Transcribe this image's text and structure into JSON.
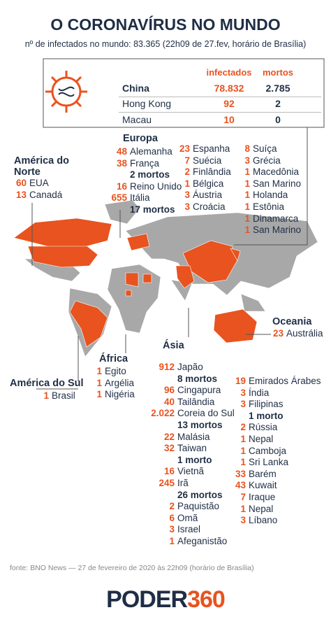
{
  "title": "O CORONAVÍRUS NO MUNDO",
  "subtitle": "nº de infectados no mundo: 83.365 (22h09 de 27.fev, horário de Brasília)",
  "table": {
    "headers": [
      "infectados",
      "mortos"
    ],
    "rows": [
      [
        "China",
        "78.832",
        "2.785"
      ],
      [
        "Hong Kong",
        "92",
        "2"
      ],
      [
        "Macau",
        "10",
        "0"
      ]
    ]
  },
  "regions": [
    {
      "name": "América do Norte",
      "columns": [
        [
          {
            "count": "60",
            "country": "EUA"
          },
          {
            "count": "13",
            "country": "Canadá"
          }
        ]
      ]
    },
    {
      "name": "Europa",
      "columns": [
        [
          {
            "count": "48",
            "country": "Alemanha"
          },
          {
            "count": "38",
            "country": "França",
            "deaths": "2 mortos"
          },
          {
            "count": "16",
            "country": "Reino Unido"
          },
          {
            "count": "655",
            "country": "Itália",
            "deaths": "17 mortos"
          }
        ],
        [
          {
            "count": "23",
            "country": "Espanha"
          },
          {
            "count": "7",
            "country": "Suécia"
          },
          {
            "count": "2",
            "country": "Finlândia"
          },
          {
            "count": "1",
            "country": "Bélgica"
          },
          {
            "count": "3",
            "country": "Áustria"
          },
          {
            "count": "3",
            "country": "Croácia"
          }
        ],
        [
          {
            "count": "8",
            "country": "Suíça"
          },
          {
            "count": "3",
            "country": "Grécia"
          },
          {
            "count": "1",
            "country": "Macedônia"
          },
          {
            "count": "1",
            "country": "San Marino"
          },
          {
            "count": "1",
            "country": "Holanda"
          },
          {
            "count": "1",
            "country": "Estônia"
          },
          {
            "count": "1",
            "country": "Dinamarca"
          },
          {
            "count": "1",
            "country": "San Marino"
          }
        ]
      ]
    },
    {
      "name": "Oceania",
      "columns": [
        [
          {
            "count": "23",
            "country": "Austrália"
          }
        ]
      ]
    },
    {
      "name": "América do Sul",
      "columns": [
        [
          {
            "count": "1",
            "country": "Brasil"
          }
        ]
      ]
    },
    {
      "name": "África",
      "columns": [
        [
          {
            "count": "1",
            "country": "Egito"
          },
          {
            "count": "1",
            "country": "Argélia"
          },
          {
            "count": "1",
            "country": "Nigéria"
          }
        ]
      ]
    },
    {
      "name": "Ásia",
      "columns": [
        [
          {
            "count": "912",
            "country": "Japão",
            "deaths": "8 mortos"
          },
          {
            "count": "96",
            "country": "Cingapura"
          },
          {
            "count": "40",
            "country": "Tailândia"
          },
          {
            "count": "2.022",
            "country": "Coreia do Sul",
            "deaths": "13 mortos"
          },
          {
            "count": "22",
            "country": "Malásia"
          },
          {
            "count": "32",
            "country": "Taiwan",
            "deaths": "1 morto"
          },
          {
            "count": "16",
            "country": "Vietnã"
          },
          {
            "count": "245",
            "country": "Irã",
            "deaths": "26 mortos"
          },
          {
            "count": "2",
            "country": "Paquistão"
          },
          {
            "count": "6",
            "country": "Omã"
          },
          {
            "count": "3",
            "country": "Israel"
          },
          {
            "count": "1",
            "country": "Afeganistão"
          }
        ],
        [
          {
            "count": "19",
            "country": "Emirados Árabes"
          },
          {
            "count": "3",
            "country": "Índia"
          },
          {
            "count": "3",
            "country": "Filipinas",
            "deaths": "1 morto"
          },
          {
            "count": "2",
            "country": "Rússia"
          },
          {
            "count": "1",
            "country": "Nepal"
          },
          {
            "count": "1",
            "country": "Camboja"
          },
          {
            "count": "1",
            "country": "Sri Lanka"
          },
          {
            "count": "33",
            "country": "Barém"
          },
          {
            "count": "43",
            "country": "Kuwait"
          },
          {
            "count": "7",
            "country": "Iraque"
          },
          {
            "count": "1",
            "country": "Nepal"
          },
          {
            "count": "3",
            "country": "Líbano"
          }
        ]
      ]
    }
  ],
  "footer": "fonte: BNO News — 27 de fevereiro de 2020 às 22h09 (horário de Brasília)",
  "logo": [
    "PODER",
    "360"
  ]
}
